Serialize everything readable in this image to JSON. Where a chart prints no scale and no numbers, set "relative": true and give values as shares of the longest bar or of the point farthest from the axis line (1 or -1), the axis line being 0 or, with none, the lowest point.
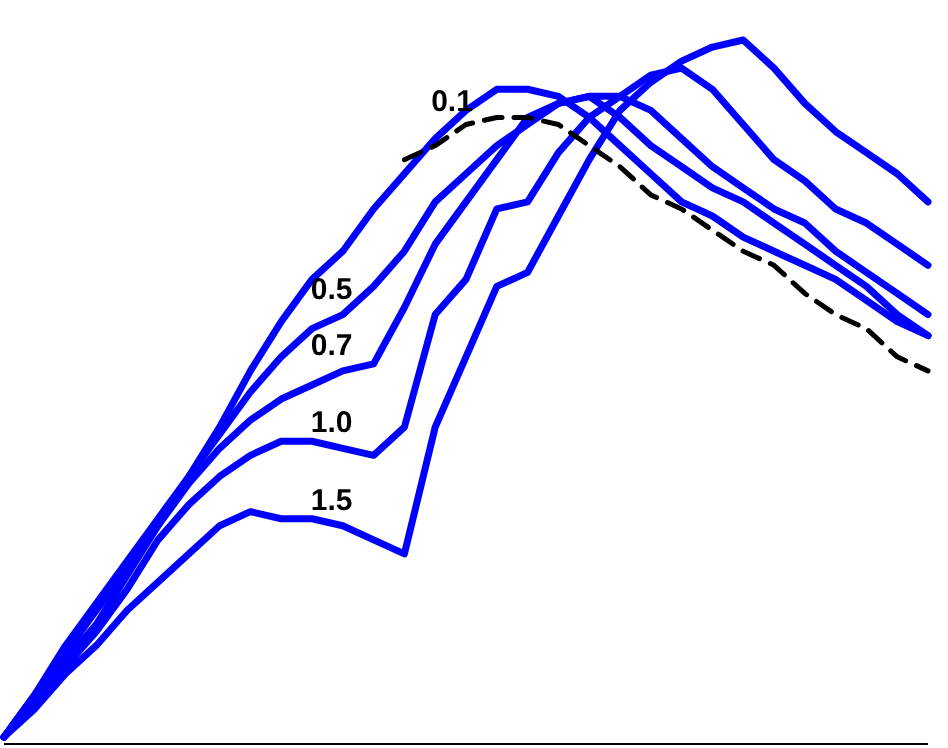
{
  "chart_data": {
    "type": "line",
    "relative": true,
    "line_style": "solid",
    "marker": "none",
    "categories": [
      null,
      null,
      null,
      null,
      null,
      null,
      null,
      null,
      null,
      null,
      null,
      null,
      null,
      null,
      null,
      null,
      null,
      null,
      null,
      null,
      null,
      null,
      null,
      null,
      null,
      null,
      null,
      null,
      null,
      null,
      null
    ],
    "series": [
      {
        "name": "0.1",
        "color": "#0000ff",
        "values": [
          0.01,
          0.07,
          0.13,
          0.19,
          0.25,
          0.31,
          0.38,
          0.45,
          0.53,
          0.6,
          0.66,
          0.7,
          0.76,
          0.81,
          0.86,
          0.9,
          0.93,
          0.93,
          0.92,
          0.89,
          0.85,
          0.81,
          0.77,
          0.75,
          0.72,
          0.7,
          0.68,
          0.66,
          0.63,
          0.6,
          0.58
        ]
      },
      {
        "name": "0.5",
        "color": "#0000ff",
        "values": [
          0.01,
          0.07,
          0.14,
          0.2,
          0.26,
          0.32,
          0.38,
          0.44,
          0.5,
          0.55,
          0.59,
          0.61,
          0.65,
          0.7,
          0.77,
          0.81,
          0.85,
          0.88,
          0.91,
          0.92,
          0.89,
          0.85,
          0.82,
          0.79,
          0.77,
          0.74,
          0.71,
          0.68,
          0.65,
          0.61,
          0.58
        ]
      },
      {
        "name": "0.7",
        "color": "#0000ff",
        "values": [
          0.01,
          0.07,
          0.12,
          0.17,
          0.24,
          0.31,
          0.37,
          0.42,
          0.46,
          0.49,
          0.51,
          0.53,
          0.54,
          0.62,
          0.71,
          0.77,
          0.83,
          0.89,
          0.91,
          0.92,
          0.92,
          0.9,
          0.86,
          0.82,
          0.79,
          0.76,
          0.74,
          0.7,
          0.67,
          0.64,
          0.61
        ]
      },
      {
        "name": "1.0",
        "color": "#0000ff",
        "values": [
          0.01,
          0.06,
          0.11,
          0.16,
          0.22,
          0.29,
          0.34,
          0.38,
          0.41,
          0.43,
          0.43,
          0.42,
          0.41,
          0.45,
          0.61,
          0.66,
          0.76,
          0.77,
          0.84,
          0.89,
          0.92,
          0.95,
          0.96,
          0.93,
          0.88,
          0.83,
          0.8,
          0.76,
          0.74,
          0.71,
          0.68
        ]
      },
      {
        "name": "1.5",
        "color": "#0000ff",
        "values": [
          0.01,
          0.05,
          0.1,
          0.14,
          0.19,
          0.23,
          0.27,
          0.31,
          0.33,
          0.32,
          0.32,
          0.31,
          0.29,
          0.27,
          0.45,
          0.55,
          0.65,
          0.67,
          0.75,
          0.83,
          0.9,
          0.94,
          0.97,
          0.99,
          1.0,
          0.96,
          0.91,
          0.87,
          0.84,
          0.81,
          0.77
        ]
      },
      {
        "color": "#000000",
        "line_style": "dashed",
        "values": [
          null,
          null,
          null,
          null,
          null,
          null,
          null,
          null,
          null,
          null,
          null,
          null,
          null,
          0.83,
          0.85,
          0.88,
          0.89,
          0.89,
          0.88,
          0.85,
          0.82,
          0.78,
          0.76,
          0.73,
          0.7,
          0.68,
          0.64,
          0.61,
          0.59,
          0.55,
          0.53
        ]
      }
    ]
  }
}
